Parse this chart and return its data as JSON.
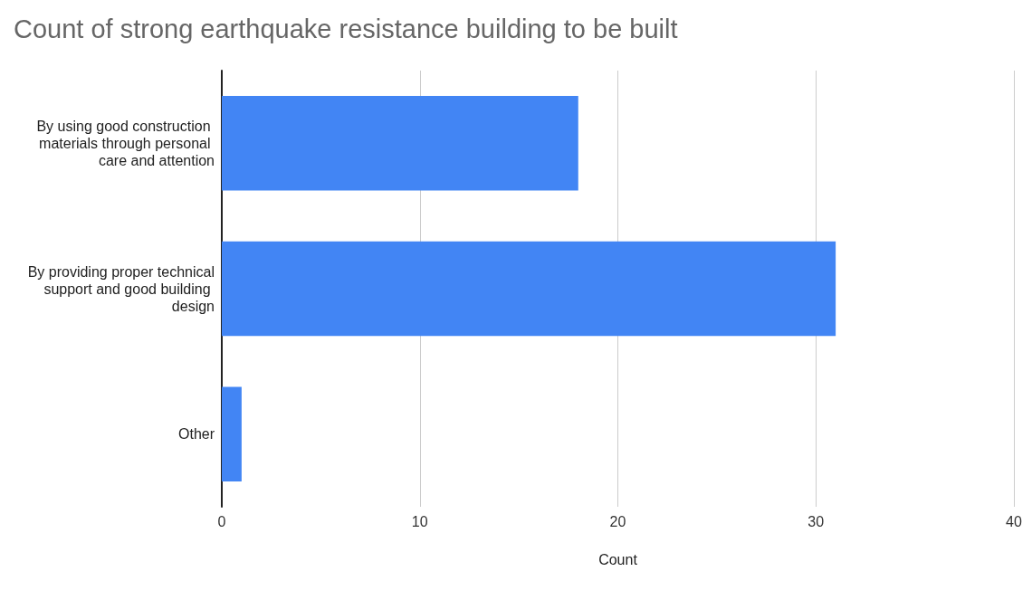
{
  "chart_data": {
    "type": "bar",
    "orientation": "horizontal",
    "title": "Count of strong earthquake resistance building to be built",
    "xlabel": "Count",
    "categories": [
      "By using good construction materials through personal care and attention",
      "By providing proper technical support and good building design",
      "Other"
    ],
    "values": [
      18,
      31,
      1
    ],
    "color": "#4285f4",
    "xlim": [
      0,
      40
    ],
    "xticks": [
      0,
      10,
      20,
      30,
      40
    ],
    "grid": "x"
  }
}
